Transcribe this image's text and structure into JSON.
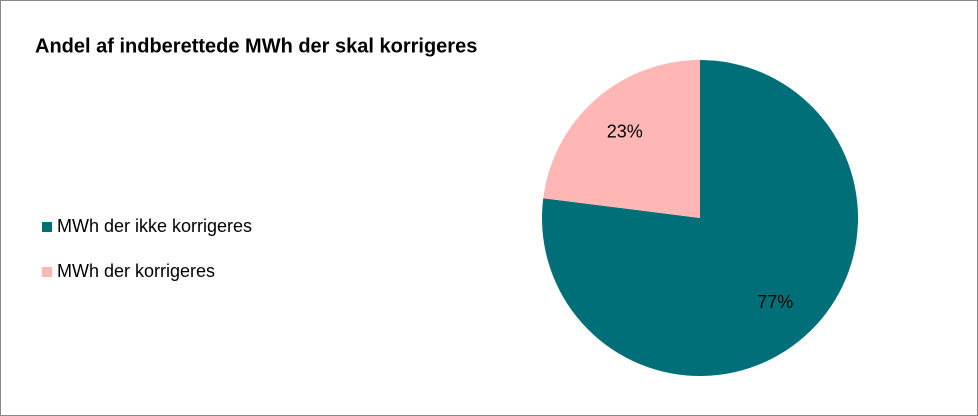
{
  "chart_data": {
    "type": "pie",
    "title": "Andel af indberettede MWh der skal korrigeres",
    "categories": [
      "MWh der ikke korrigeres",
      "MWh der korrigeres"
    ],
    "values": [
      77,
      23
    ],
    "value_labels": [
      "77%",
      "23%"
    ],
    "colors": [
      "#006f78",
      "#ffb7b5"
    ],
    "legend": "left"
  }
}
